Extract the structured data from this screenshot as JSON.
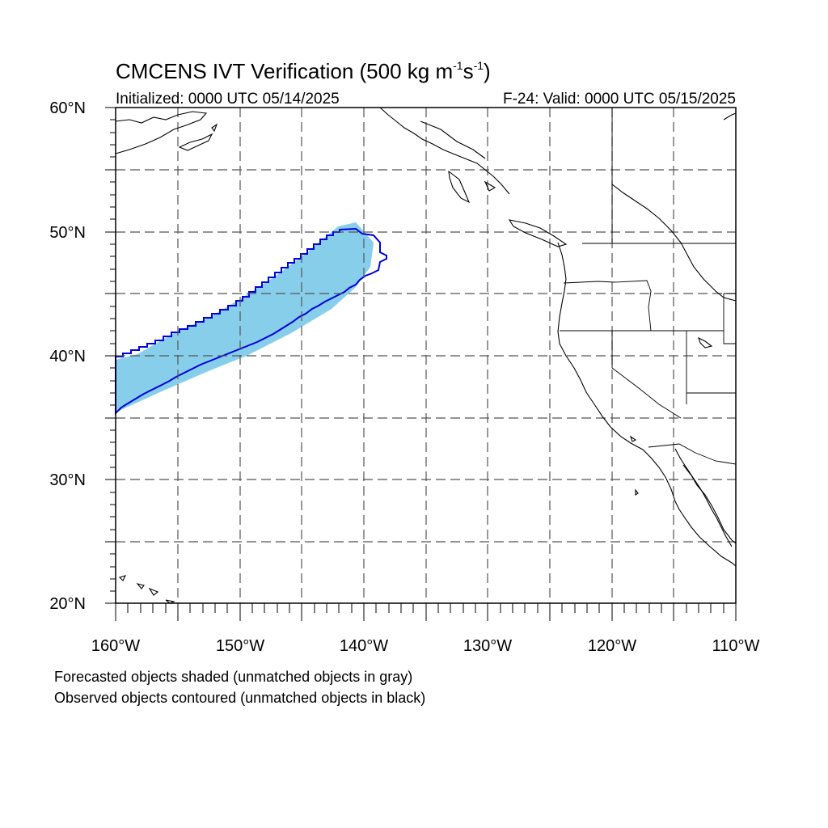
{
  "title": {
    "main": "CMCENS IVT Verification (500 kg m",
    "exp1": "-1",
    "mid": "s",
    "exp2": "-1",
    "close": ")"
  },
  "initialized": "Initialized: 0000 UTC 05/14/2025",
  "valid": "F-24: Valid: 0000 UTC 05/15/2025",
  "map": {
    "lon_range": [
      -160,
      -110
    ],
    "lat_range": [
      20,
      60
    ],
    "grid": "dashed every 5 degrees",
    "lat_labels": [
      "60°N",
      "50°N",
      "40°N",
      "30°N",
      "20°N"
    ],
    "lon_labels": [
      "160°W",
      "150°W",
      "140°W",
      "130°W",
      "120°W",
      "110°W"
    ],
    "forecast_fill_color": "#87ceea",
    "observed_contour_color": "#0000dd",
    "coastline_color": "#000000"
  },
  "legend": {
    "line1": "Forecasted objects shaded (unmatched objects in gray)",
    "line2": "Observed objects contoured (unmatched objects in black)"
  }
}
